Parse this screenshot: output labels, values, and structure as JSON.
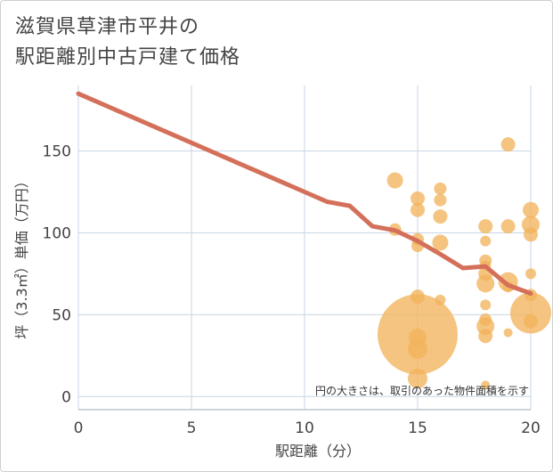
{
  "title_line1": "滋賀県草津市平井の",
  "title_line2": "駅距離別中古戸建て価格",
  "chart_data": {
    "type": "scatter",
    "xlabel": "駅距離（分）",
    "ylabel": "坪（3.3㎡）単価（万円）",
    "note": "円の大きさは、取引のあった物件面積を示す",
    "xlim": [
      0,
      20
    ],
    "ylim": [
      -8,
      190
    ],
    "xticks": [
      0,
      5,
      10,
      15,
      20
    ],
    "yticks": [
      0,
      50,
      100,
      150
    ],
    "grid": true,
    "colors": {
      "bubble": "#f2b45c",
      "line": "#d4705a",
      "grid": "#c9d6e3"
    },
    "points": [
      {
        "x": 14,
        "y": 132,
        "s": 9
      },
      {
        "x": 14,
        "y": 102,
        "s": 7
      },
      {
        "x": 15,
        "y": 121,
        "s": 8
      },
      {
        "x": 15,
        "y": 114,
        "s": 8
      },
      {
        "x": 15,
        "y": 96,
        "s": 7
      },
      {
        "x": 15,
        "y": 92,
        "s": 7
      },
      {
        "x": 15,
        "y": 61,
        "s": 8
      },
      {
        "x": 15,
        "y": 38,
        "s": 45
      },
      {
        "x": 15,
        "y": 36,
        "s": 10
      },
      {
        "x": 15,
        "y": 29,
        "s": 11
      },
      {
        "x": 15,
        "y": 11,
        "s": 11
      },
      {
        "x": 16,
        "y": 127,
        "s": 7
      },
      {
        "x": 16,
        "y": 120,
        "s": 7
      },
      {
        "x": 16,
        "y": 110,
        "s": 8
      },
      {
        "x": 16,
        "y": 94,
        "s": 9
      },
      {
        "x": 16,
        "y": 59,
        "s": 6
      },
      {
        "x": 18,
        "y": 104,
        "s": 8
      },
      {
        "x": 18,
        "y": 95,
        "s": 6
      },
      {
        "x": 18,
        "y": 83,
        "s": 7
      },
      {
        "x": 18,
        "y": 80,
        "s": 6
      },
      {
        "x": 18,
        "y": 75,
        "s": 8
      },
      {
        "x": 18,
        "y": 69,
        "s": 10
      },
      {
        "x": 18,
        "y": 56,
        "s": 6
      },
      {
        "x": 18,
        "y": 47,
        "s": 7
      },
      {
        "x": 18,
        "y": 43,
        "s": 10
      },
      {
        "x": 18,
        "y": 37,
        "s": 8
      },
      {
        "x": 18,
        "y": 7,
        "s": 5
      },
      {
        "x": 19,
        "y": 154,
        "s": 8
      },
      {
        "x": 19,
        "y": 104,
        "s": 8
      },
      {
        "x": 19,
        "y": 70,
        "s": 11
      },
      {
        "x": 19,
        "y": 67,
        "s": 6
      },
      {
        "x": 19,
        "y": 39,
        "s": 5
      },
      {
        "x": 20,
        "y": 114,
        "s": 9
      },
      {
        "x": 20,
        "y": 105,
        "s": 10
      },
      {
        "x": 20,
        "y": 99,
        "s": 8
      },
      {
        "x": 20,
        "y": 75,
        "s": 6
      },
      {
        "x": 20,
        "y": 62,
        "s": 7
      },
      {
        "x": 20,
        "y": 51,
        "s": 23
      },
      {
        "x": 20,
        "y": 46,
        "s": 8
      }
    ],
    "trend": {
      "x": [
        0,
        1,
        2,
        3,
        4,
        5,
        6,
        7,
        8,
        9,
        10,
        11,
        12,
        13,
        14,
        15,
        16,
        17,
        18,
        19,
        20
      ],
      "y": [
        185,
        179,
        173,
        167,
        161,
        155,
        149,
        143,
        137,
        131,
        125,
        119,
        116.5,
        104,
        101.5,
        95,
        87,
        78.5,
        79.5,
        68,
        63
      ]
    }
  }
}
